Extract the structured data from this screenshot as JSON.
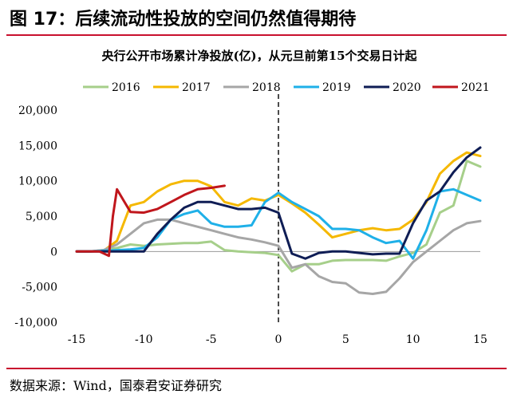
{
  "figure_title": "图 17：后续流动性投放的空间仍然值得期待",
  "source": "数据来源：Wind，国泰君安证券研究",
  "chart_data": {
    "type": "line",
    "title": "央行公开市场累计净投放(亿)，从元旦前第15个交易日计起",
    "xlabel": "",
    "ylabel": "",
    "xlim": [
      -15,
      15
    ],
    "ylim": [
      -10000,
      20000
    ],
    "x_ticks": [
      -15,
      -10,
      -5,
      0,
      5,
      10,
      15
    ],
    "y_ticks": [
      -10000,
      -5000,
      0,
      5000,
      10000,
      15000,
      20000
    ],
    "y_tick_labels": [
      "-10,000",
      "-5,000",
      "0",
      "5,000",
      "10,000",
      "15,000",
      "20,000"
    ],
    "grid": false,
    "legend_position": "top",
    "reference_line": {
      "x": 0,
      "style": "dashed"
    },
    "series": [
      {
        "name": "2016",
        "color": "#a6cf8a",
        "x": [
          -15,
          -14,
          -13,
          -12,
          -11,
          -10,
          -9,
          -8,
          -7,
          -6,
          -5,
          -4,
          -3,
          -2,
          -1,
          0,
          1,
          2,
          3,
          4,
          5,
          6,
          7,
          8,
          9,
          10,
          11,
          12,
          13,
          14,
          15
        ],
        "y": [
          0,
          0,
          200,
          500,
          1000,
          800,
          1000,
          1100,
          1200,
          1200,
          1400,
          200,
          0,
          -100,
          -200,
          -500,
          -2800,
          -1800,
          -1800,
          -1300,
          -1200,
          -1200,
          -1200,
          -1300,
          -700,
          -200,
          1000,
          5500,
          6500,
          12800,
          12000
        ]
      },
      {
        "name": "2017",
        "color": "#f5b800",
        "x": [
          -15,
          -14,
          -13,
          -12,
          -11,
          -10,
          -9,
          -8,
          -7,
          -6,
          -5,
          -4,
          -3,
          -2,
          -1,
          0,
          1,
          2,
          3,
          4,
          5,
          6,
          7,
          8,
          9,
          10,
          11,
          12,
          13,
          14,
          15
        ],
        "y": [
          0,
          0,
          100,
          1500,
          6500,
          7000,
          8500,
          9500,
          10000,
          10000,
          9200,
          7000,
          6500,
          7500,
          7200,
          8000,
          6800,
          5500,
          3800,
          2000,
          2500,
          3000,
          3300,
          3000,
          3200,
          4500,
          7000,
          11000,
          12800,
          14000,
          13500
        ]
      },
      {
        "name": "2018",
        "color": "#a6a6a6",
        "x": [
          -15,
          -14,
          -13,
          -12,
          -11,
          -10,
          -9,
          -8,
          -7,
          -6,
          -5,
          -4,
          -3,
          -2,
          -1,
          0,
          1,
          2,
          3,
          4,
          5,
          6,
          7,
          8,
          9,
          10,
          11,
          12,
          13,
          14,
          15
        ],
        "y": [
          0,
          0,
          200,
          1000,
          2500,
          4000,
          4500,
          4500,
          4000,
          3500,
          3000,
          2500,
          2000,
          1700,
          1300,
          800,
          -2300,
          -1800,
          -3500,
          -4300,
          -4500,
          -5800,
          -6000,
          -5700,
          -3800,
          -1500,
          0,
          1500,
          3000,
          4000,
          4300
        ]
      },
      {
        "name": "2019",
        "color": "#1fb0e8",
        "x": [
          -15,
          -14,
          -13,
          -12,
          -11,
          -10,
          -9,
          -8,
          -7,
          -6,
          -5,
          -4,
          -3,
          -2,
          -1,
          0,
          1,
          2,
          3,
          4,
          5,
          6,
          7,
          8,
          9,
          10,
          11,
          12,
          13,
          14,
          15
        ],
        "y": [
          0,
          0,
          100,
          200,
          300,
          500,
          2000,
          4500,
          5300,
          5800,
          4000,
          3500,
          3500,
          3700,
          7000,
          8300,
          7000,
          6000,
          5000,
          3200,
          3200,
          3000,
          2000,
          1200,
          1500,
          -1000,
          3000,
          8500,
          8800,
          8000,
          7200
        ]
      },
      {
        "name": "2020",
        "color": "#0f1d55",
        "x": [
          -15,
          -14,
          -13,
          -12,
          -11,
          -10,
          -9,
          -8,
          -7,
          -6,
          -5,
          -4,
          -3,
          -2,
          -1,
          0,
          1,
          2,
          3,
          4,
          5,
          6,
          7,
          8,
          9,
          10,
          11,
          12,
          13,
          14,
          15
        ],
        "y": [
          0,
          0,
          0,
          0,
          0,
          0,
          2500,
          4500,
          6200,
          7000,
          7000,
          6500,
          6000,
          6000,
          6200,
          5500,
          -300,
          -1000,
          -200,
          0,
          0,
          -200,
          -400,
          -300,
          -300,
          4000,
          7200,
          8500,
          11200,
          13300,
          14700
        ]
      },
      {
        "name": "2021",
        "color": "#c0161c",
        "x": [
          -15,
          -14,
          -13.3,
          -12.6,
          -12.3,
          -12,
          -11.5,
          -11,
          -10,
          -9,
          -8,
          -7,
          -6,
          -5,
          -4
        ],
        "y": [
          0,
          0,
          0,
          -600,
          5000,
          8800,
          7200,
          5600,
          5500,
          6000,
          7000,
          8000,
          8800,
          9000,
          9300
        ]
      }
    ]
  }
}
